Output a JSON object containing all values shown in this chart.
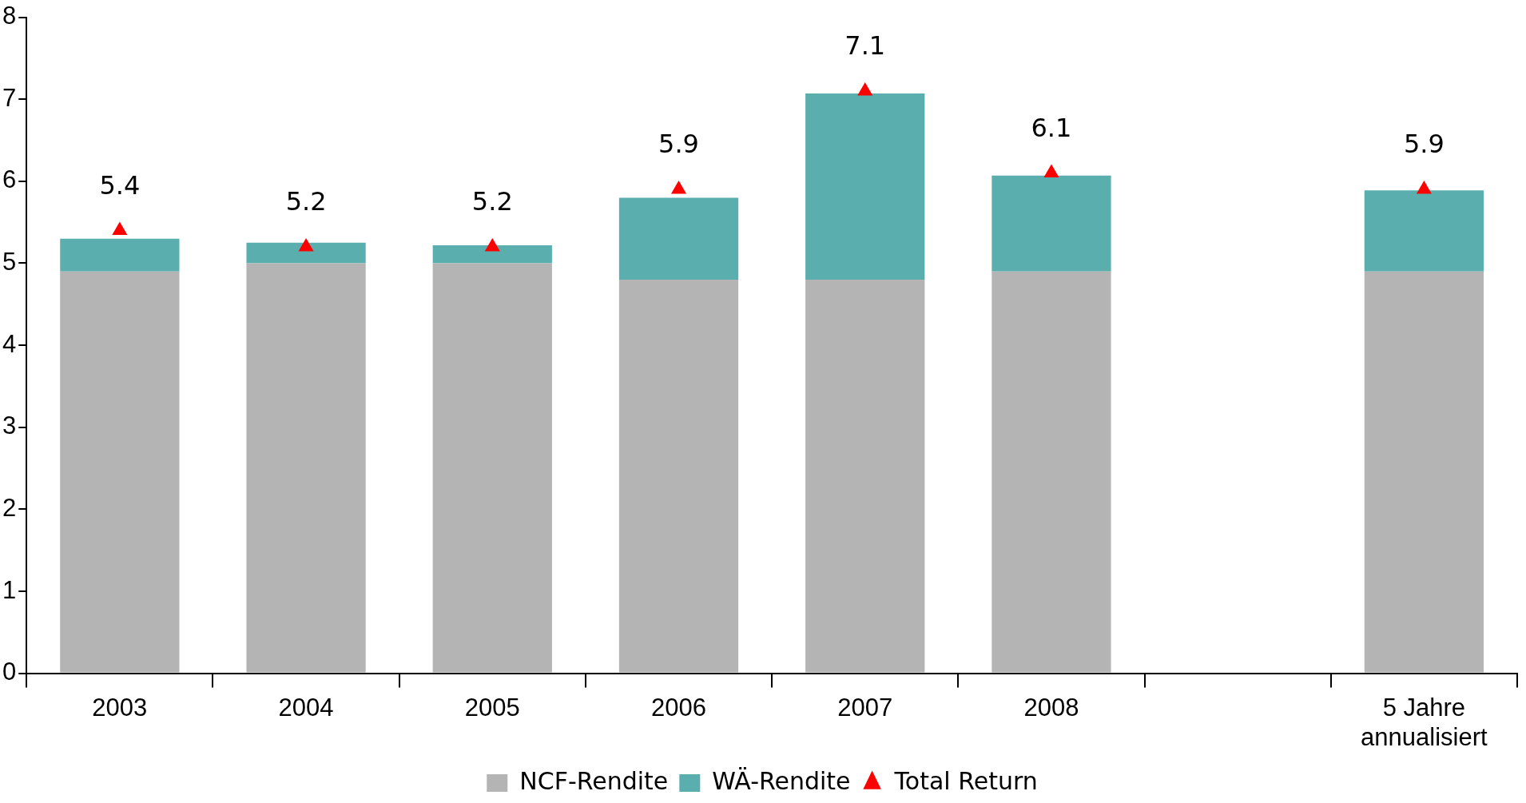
{
  "chart_data": {
    "type": "bar",
    "stacked": true,
    "categories": [
      "2003",
      "2004",
      "2005",
      "2006",
      "2007",
      "2008",
      null,
      "5 Jahre annualisiert"
    ],
    "series": [
      {
        "name": "NCF-Rendite",
        "color": "#b4b4b4",
        "values": [
          4.9,
          5.0,
          5.0,
          4.8,
          4.8,
          4.9,
          null,
          4.9
        ]
      },
      {
        "name": "WÄ-Rendite",
        "color": "#5aafae",
        "values": [
          0.4,
          0.25,
          0.22,
          1.0,
          2.27,
          1.17,
          null,
          0.99
        ]
      },
      {
        "name": "Total Return",
        "type": "scatter",
        "marker": "triangle",
        "color": "#ff0000",
        "values": [
          5.4,
          5.2,
          5.2,
          5.9,
          7.1,
          6.1,
          null,
          5.9
        ],
        "value_labels": [
          "5.4",
          "5.2",
          "5.2",
          "5.9",
          "7.1",
          "6.1",
          null,
          "5.9"
        ]
      }
    ],
    "ylim": [
      0,
      8
    ],
    "yticks": [
      0,
      1,
      2,
      3,
      4,
      5,
      6,
      7,
      8
    ],
    "grid": false,
    "legend": "bottom"
  }
}
